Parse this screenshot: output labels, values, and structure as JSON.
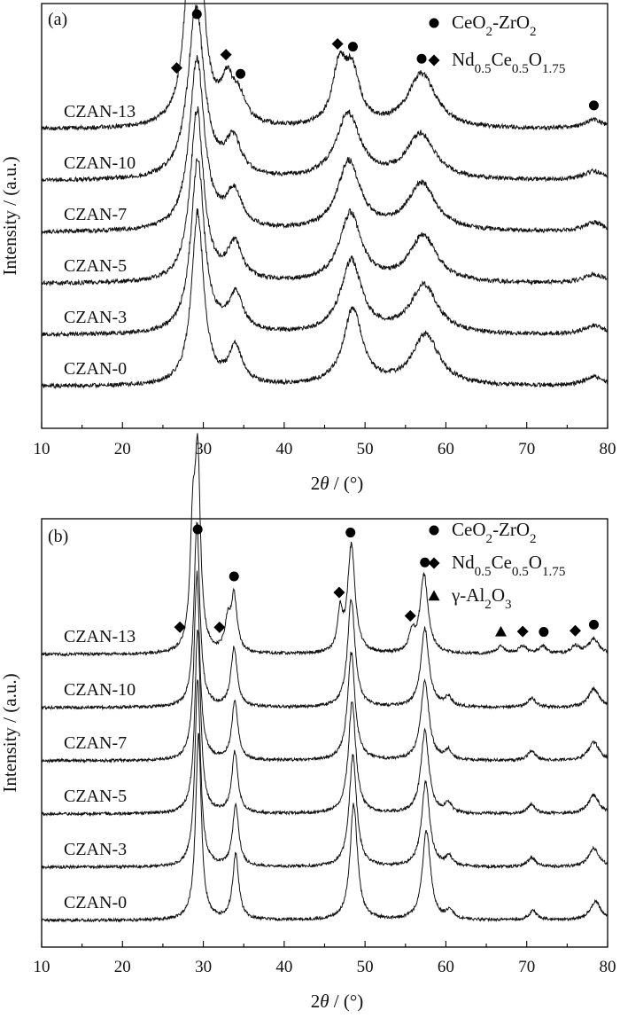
{
  "chart_data": [
    {
      "type": "line",
      "panel_label": "(a)",
      "xlabel": "2θ / (°)",
      "ylabel": "Intensity / (a.u.)",
      "xlim": [
        10,
        80
      ],
      "xticks": [
        10,
        20,
        30,
        40,
        50,
        60,
        70,
        80
      ],
      "y_axis_values_shown": false,
      "legend": {
        "placement": "top-right",
        "entries": [
          {
            "marker": "circle",
            "label": "CeO2-ZrO2"
          },
          {
            "marker": "diamond",
            "label": "Nd0.5Ce0.5O1.75"
          }
        ]
      },
      "series": [
        {
          "name": "CZAN-0",
          "peaks": [
            {
              "x": 29.3,
              "h": 0.95,
              "w": 0.9
            },
            {
              "x": 34.0,
              "h": 0.2,
              "w": 1.0
            },
            {
              "x": 48.5,
              "h": 0.42,
              "w": 1.4
            },
            {
              "x": 57.5,
              "h": 0.28,
              "w": 2.0
            },
            {
              "x": 78.3,
              "h": 0.05,
              "w": 1.5
            }
          ]
        },
        {
          "name": "CZAN-3",
          "peaks": [
            {
              "x": 29.3,
              "h": 0.95,
              "w": 1.0
            },
            {
              "x": 34.0,
              "h": 0.2,
              "w": 1.1
            },
            {
              "x": 48.3,
              "h": 0.4,
              "w": 1.6
            },
            {
              "x": 57.3,
              "h": 0.27,
              "w": 2.0
            },
            {
              "x": 78.3,
              "h": 0.05,
              "w": 1.5
            }
          ]
        },
        {
          "name": "CZAN-5",
          "peaks": [
            {
              "x": 29.2,
              "h": 0.95,
              "w": 1.0
            },
            {
              "x": 33.9,
              "h": 0.2,
              "w": 1.1
            },
            {
              "x": 48.2,
              "h": 0.38,
              "w": 1.6
            },
            {
              "x": 57.2,
              "h": 0.26,
              "w": 2.0
            },
            {
              "x": 78.3,
              "h": 0.05,
              "w": 1.5
            }
          ]
        },
        {
          "name": "CZAN-7",
          "peaks": [
            {
              "x": 29.2,
              "h": 0.95,
              "w": 1.1
            },
            {
              "x": 33.8,
              "h": 0.2,
              "w": 1.2
            },
            {
              "x": 48.0,
              "h": 0.38,
              "w": 1.7
            },
            {
              "x": 57.0,
              "h": 0.26,
              "w": 2.1
            },
            {
              "x": 78.3,
              "h": 0.05,
              "w": 1.5
            }
          ]
        },
        {
          "name": "CZAN-10",
          "peaks": [
            {
              "x": 29.1,
              "h": 0.95,
              "w": 1.2
            },
            {
              "x": 33.7,
              "h": 0.2,
              "w": 1.2
            },
            {
              "x": 47.9,
              "h": 0.36,
              "w": 1.8
            },
            {
              "x": 56.9,
              "h": 0.25,
              "w": 2.1
            },
            {
              "x": 78.3,
              "h": 0.05,
              "w": 1.5
            }
          ]
        },
        {
          "name": "CZAN-13",
          "peaks": [
            {
              "x": 28.6,
              "h": 0.95,
              "w": 0.9
            },
            {
              "x": 29.3,
              "h": 0.88,
              "w": 0.8
            },
            {
              "x": 33.0,
              "h": 0.22,
              "w": 1.0
            },
            {
              "x": 34.5,
              "h": 0.12,
              "w": 1.0
            },
            {
              "x": 46.8,
              "h": 0.3,
              "w": 1.0
            },
            {
              "x": 48.4,
              "h": 0.28,
              "w": 1.2
            },
            {
              "x": 57.0,
              "h": 0.3,
              "w": 2.1
            },
            {
              "x": 78.3,
              "h": 0.05,
              "w": 1.5
            }
          ]
        }
      ],
      "annotations": [
        {
          "marker": "diamond",
          "x": 26.7
        },
        {
          "marker": "circle",
          "x": 29.2
        },
        {
          "marker": "diamond",
          "x": 32.8
        },
        {
          "marker": "circle",
          "x": 34.6
        },
        {
          "marker": "diamond",
          "x": 46.6
        },
        {
          "marker": "circle",
          "x": 48.5
        },
        {
          "marker": "circle",
          "x": 57.0
        },
        {
          "marker": "circle",
          "x": 78.3
        }
      ]
    },
    {
      "type": "line",
      "panel_label": "(b)",
      "xlabel": "2θ / (°)",
      "ylabel": "Intensity / (a.u.)",
      "xlim": [
        10,
        80
      ],
      "xticks": [
        10,
        20,
        30,
        40,
        50,
        60,
        70,
        80
      ],
      "y_axis_values_shown": false,
      "legend": {
        "placement": "top-right",
        "entries": [
          {
            "marker": "circle",
            "label": "CeO2-ZrO2"
          },
          {
            "marker": "diamond",
            "label": "Nd0.5Ce0.5O1.75"
          },
          {
            "marker": "triangle",
            "label": "γ-Al2O3"
          }
        ]
      },
      "series": [
        {
          "name": "CZAN-0",
          "peaks": [
            {
              "x": 29.4,
              "h": 1.0,
              "w": 0.42
            },
            {
              "x": 34.0,
              "h": 0.35,
              "w": 0.45
            },
            {
              "x": 48.6,
              "h": 0.62,
              "w": 0.55
            },
            {
              "x": 57.6,
              "h": 0.48,
              "w": 0.6
            },
            {
              "x": 60.5,
              "h": 0.05,
              "w": 0.5
            },
            {
              "x": 70.8,
              "h": 0.05,
              "w": 0.6
            },
            {
              "x": 78.5,
              "h": 0.1,
              "w": 0.8
            }
          ]
        },
        {
          "name": "CZAN-3",
          "peaks": [
            {
              "x": 29.3,
              "h": 1.0,
              "w": 0.42
            },
            {
              "x": 34.0,
              "h": 0.33,
              "w": 0.45
            },
            {
              "x": 48.5,
              "h": 0.6,
              "w": 0.55
            },
            {
              "x": 57.5,
              "h": 0.45,
              "w": 0.6
            },
            {
              "x": 60.4,
              "h": 0.05,
              "w": 0.5
            },
            {
              "x": 70.6,
              "h": 0.05,
              "w": 0.6
            },
            {
              "x": 78.3,
              "h": 0.1,
              "w": 0.8
            }
          ]
        },
        {
          "name": "CZAN-5",
          "peaks": [
            {
              "x": 29.3,
              "h": 1.0,
              "w": 0.42
            },
            {
              "x": 33.9,
              "h": 0.33,
              "w": 0.45
            },
            {
              "x": 48.4,
              "h": 0.6,
              "w": 0.55
            },
            {
              "x": 57.4,
              "h": 0.44,
              "w": 0.6
            },
            {
              "x": 60.3,
              "h": 0.05,
              "w": 0.5
            },
            {
              "x": 70.6,
              "h": 0.05,
              "w": 0.6
            },
            {
              "x": 78.3,
              "h": 0.1,
              "w": 0.8
            }
          ]
        },
        {
          "name": "CZAN-7",
          "peaks": [
            {
              "x": 29.2,
              "h": 1.0,
              "w": 0.42
            },
            {
              "x": 33.9,
              "h": 0.32,
              "w": 0.45
            },
            {
              "x": 48.3,
              "h": 0.58,
              "w": 0.55
            },
            {
              "x": 57.4,
              "h": 0.43,
              "w": 0.6
            },
            {
              "x": 60.3,
              "h": 0.05,
              "w": 0.5
            },
            {
              "x": 70.6,
              "h": 0.05,
              "w": 0.6
            },
            {
              "x": 78.3,
              "h": 0.1,
              "w": 0.8
            }
          ]
        },
        {
          "name": "CZAN-10",
          "peaks": [
            {
              "x": 29.2,
              "h": 1.0,
              "w": 0.42
            },
            {
              "x": 33.8,
              "h": 0.32,
              "w": 0.45
            },
            {
              "x": 48.3,
              "h": 0.58,
              "w": 0.55
            },
            {
              "x": 57.4,
              "h": 0.42,
              "w": 0.6
            },
            {
              "x": 60.3,
              "h": 0.05,
              "w": 0.5
            },
            {
              "x": 70.6,
              "h": 0.05,
              "w": 0.6
            },
            {
              "x": 78.3,
              "h": 0.1,
              "w": 0.8
            }
          ]
        },
        {
          "name": "CZAN-13",
          "peaks": [
            {
              "x": 28.7,
              "h": 0.6,
              "w": 0.4
            },
            {
              "x": 29.3,
              "h": 1.0,
              "w": 0.4
            },
            {
              "x": 33.0,
              "h": 0.15,
              "w": 0.4
            },
            {
              "x": 33.8,
              "h": 0.3,
              "w": 0.45
            },
            {
              "x": 46.9,
              "h": 0.2,
              "w": 0.35
            },
            {
              "x": 48.3,
              "h": 0.58,
              "w": 0.55
            },
            {
              "x": 55.8,
              "h": 0.1,
              "w": 0.4
            },
            {
              "x": 57.3,
              "h": 0.42,
              "w": 0.6
            },
            {
              "x": 66.8,
              "h": 0.04,
              "w": 0.6
            },
            {
              "x": 69.5,
              "h": 0.04,
              "w": 0.6
            },
            {
              "x": 72.0,
              "h": 0.04,
              "w": 0.6
            },
            {
              "x": 76.0,
              "h": 0.04,
              "w": 0.6
            },
            {
              "x": 78.3,
              "h": 0.08,
              "w": 0.8
            }
          ]
        }
      ],
      "annotations": [
        {
          "marker": "diamond",
          "x": 27.1
        },
        {
          "marker": "circle",
          "x": 29.3
        },
        {
          "marker": "diamond",
          "x": 32.0
        },
        {
          "marker": "circle",
          "x": 33.8
        },
        {
          "marker": "diamond",
          "x": 46.8
        },
        {
          "marker": "circle",
          "x": 48.2
        },
        {
          "marker": "diamond",
          "x": 55.6
        },
        {
          "marker": "circle",
          "x": 57.4
        },
        {
          "marker": "triangle",
          "x": 66.8
        },
        {
          "marker": "diamond",
          "x": 69.5
        },
        {
          "marker": "circle",
          "x": 72.1
        },
        {
          "marker": "diamond",
          "x": 76.0
        },
        {
          "marker": "circle",
          "x": 78.3
        }
      ]
    }
  ]
}
